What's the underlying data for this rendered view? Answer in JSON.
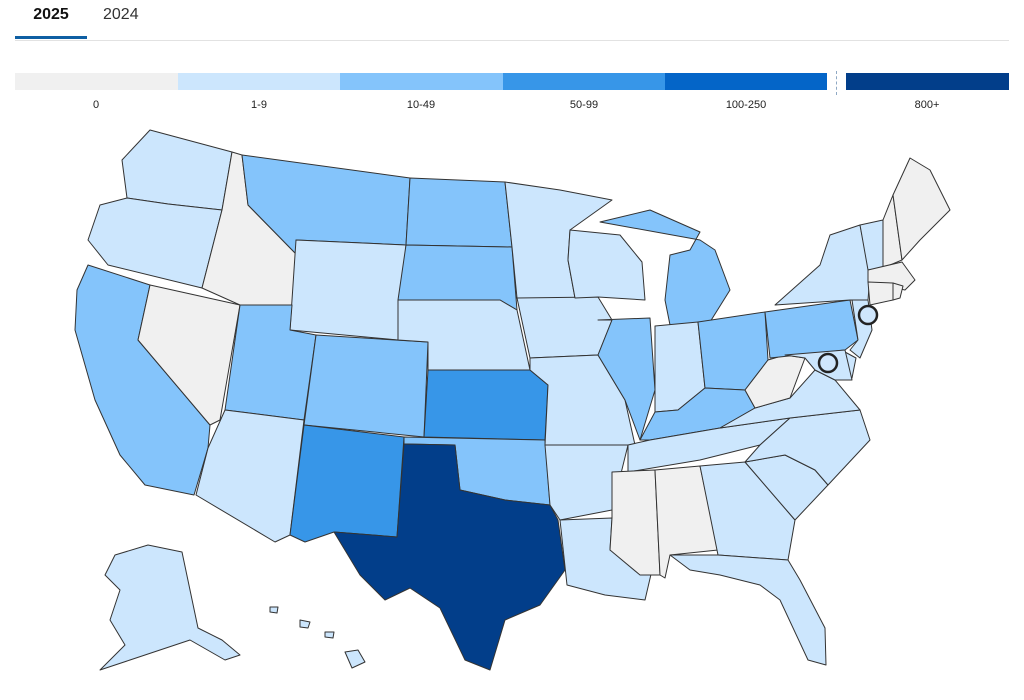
{
  "tabs": [
    {
      "label": "2025",
      "active": true
    },
    {
      "label": "2024",
      "active": false
    }
  ],
  "legend": {
    "bins": [
      {
        "label": "0",
        "color": "#f0f0f0"
      },
      {
        "label": "1-9",
        "color": "#cce6fd"
      },
      {
        "label": "10-49",
        "color": "#84c4fb"
      },
      {
        "label": "50-99",
        "color": "#3796e8"
      },
      {
        "label": "100-250",
        "color": "#0465c8"
      },
      {
        "label": "800+",
        "color": "#023e8a"
      }
    ]
  },
  "states": {
    "WA": "1-9",
    "OR": "1-9",
    "CA": "10-49",
    "NV": "0",
    "ID": "0",
    "MT": "10-49",
    "WY": "1-9",
    "UT": "10-49",
    "AZ": "1-9",
    "CO": "10-49",
    "NM": "50-99",
    "ND": "10-49",
    "SD": "10-49",
    "NE": "1-9",
    "KS": "50-99",
    "OK": "10-49",
    "TX": "800+",
    "MN": "1-9",
    "IA": "1-9",
    "MO": "1-9",
    "AR": "1-9",
    "LA": "1-9",
    "WI": "1-9",
    "IL": "10-49",
    "MI": "10-49",
    "IN": "1-9",
    "OH": "10-49",
    "KY": "10-49",
    "TN": "1-9",
    "MS": "0",
    "AL": "0",
    "GA": "1-9",
    "FL": "1-9",
    "SC": "1-9",
    "NC": "1-9",
    "VA": "1-9",
    "WV": "0",
    "PA": "10-49",
    "NY": "1-9",
    "NJ": "1-9",
    "DE": "1-9",
    "MD": "1-9",
    "VT": "1-9",
    "NH": "0",
    "ME": "0",
    "MA": "0",
    "CT": "0",
    "RI": "0",
    "AK": "1-9",
    "HI": "1-9"
  },
  "markers": [
    {
      "name": "DC",
      "bin": "1-9"
    },
    {
      "name": "NYC",
      "bin": "1-9"
    }
  ]
}
